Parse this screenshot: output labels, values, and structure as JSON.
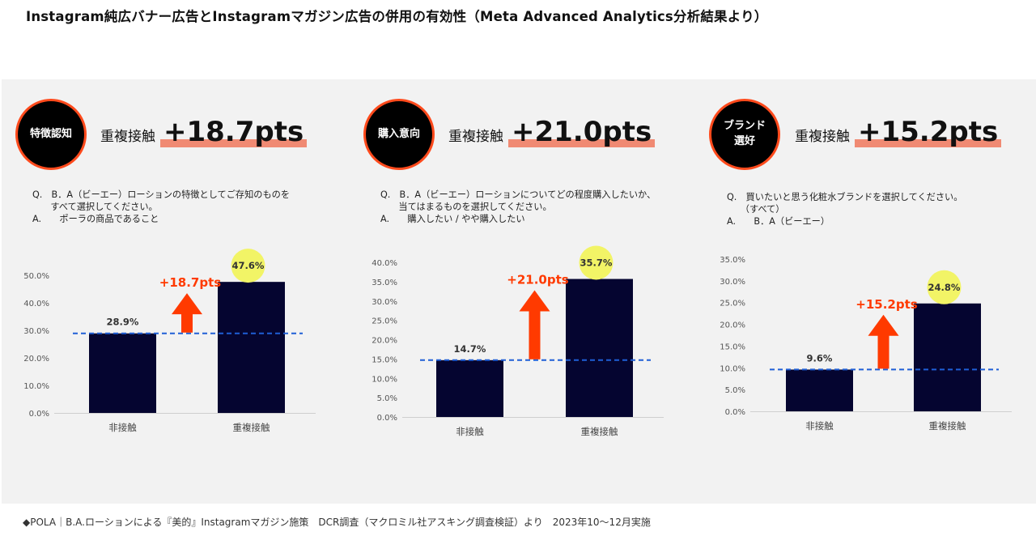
{
  "title": "Instagram純広バナー広告とInstagramマガジン広告の併用の有効性（Meta Advanced Analytics分析結果より）",
  "footer": "◆POLA｜B.A.ローションによる『美的』Instagramマガジン施策　DCR調査（マクロミル社アスキング調査検証）より　2023年10〜12月実施",
  "colors": {
    "bar": "#050530",
    "arrow": "#ff3a00",
    "dashed": "#1f5fd6",
    "highlight": "#f2f466",
    "underline": "#f08a73",
    "badge_border": "#ff4a1c"
  },
  "panels": [
    {
      "badge": "特徴認知",
      "head_label": "重複接触",
      "head_value": "+18.7pts",
      "question": "Q.　B．A（ビーエー）ローションの特徴としてご存知のものを\n　　すべて選択してください。\nA.　　ポーラの商品であること"
    },
    {
      "badge": "購入意向",
      "head_label": "重複接触",
      "head_value": "+21.0pts",
      "question": "Q.　B．A（ビーエー）ローションについてどの程度購入したいか、\n　　当てはまるものを選択してください。\nA.　　購入したい / やや購入したい"
    },
    {
      "badge": "ブランド\n選好",
      "head_label": "重複接触",
      "head_value": "+15.2pts",
      "question": "Q.　買いたいと思う化粧水ブランドを選択してください。\n　　（すべて）\nA.　　B．A（ビーエー）"
    }
  ],
  "chart_data": [
    {
      "type": "bar",
      "categories": [
        "非接触",
        "重複接触"
      ],
      "values": [
        28.9,
        47.6
      ],
      "value_labels": [
        "28.9%",
        "47.6%"
      ],
      "ylim": [
        0,
        50
      ],
      "yticks": [
        "0.0%",
        "10.0%",
        "20.0%",
        "30.0%",
        "40.0%",
        "50.0%"
      ],
      "ytick_values": [
        0,
        10,
        20,
        30,
        40,
        50
      ],
      "annotation": "+18.7pts",
      "grid": false
    },
    {
      "type": "bar",
      "categories": [
        "非接触",
        "重複接触"
      ],
      "values": [
        14.7,
        35.7
      ],
      "value_labels": [
        "14.7%",
        "35.7%"
      ],
      "ylim": [
        0,
        40
      ],
      "yticks": [
        "0.0%",
        "5.0%",
        "10.0%",
        "15.0%",
        "20.0%",
        "25.0%",
        "30.0%",
        "35.0%",
        "40.0%"
      ],
      "ytick_values": [
        0,
        5,
        10,
        15,
        20,
        25,
        30,
        35,
        40
      ],
      "annotation": "+21.0pts",
      "grid": false
    },
    {
      "type": "bar",
      "categories": [
        "非接触",
        "重複接触"
      ],
      "values": [
        9.6,
        24.8
      ],
      "value_labels": [
        "9.6%",
        "24.8%"
      ],
      "ylim": [
        0,
        35
      ],
      "yticks": [
        "0.0%",
        "5.0%",
        "10.0%",
        "15.0%",
        "20.0%",
        "25.0%",
        "30.0%",
        "35.0%"
      ],
      "ytick_values": [
        0,
        5,
        10,
        15,
        20,
        25,
        30,
        35
      ],
      "annotation": "+15.2pts",
      "grid": false
    }
  ]
}
